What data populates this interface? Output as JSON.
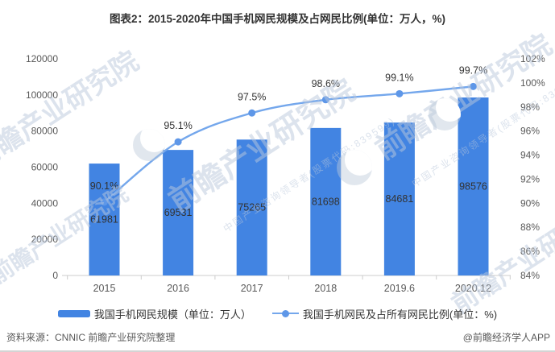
{
  "title": "图表2：2015-2020年中国手机网民规模及占网民比例(单位：万人，%)",
  "chart_data": {
    "type": "bar",
    "subtype": "bar+line dual axis",
    "categories": [
      "2015",
      "2016",
      "2017",
      "2018",
      "2019.6",
      "2020.12"
    ],
    "series": [
      {
        "name": "我国手机网民规模（单位：万人）",
        "type": "bar",
        "axis": "left",
        "values": [
          61981,
          69531,
          75265,
          81698,
          84681,
          98576
        ]
      },
      {
        "name": "我国手机网民及占所有网民比例(单位：%)",
        "type": "line",
        "axis": "right",
        "values": [
          90.1,
          95.1,
          97.5,
          98.6,
          99.1,
          99.7
        ],
        "labels": [
          "90.1%",
          "95.1%",
          "97.5%",
          "98.6%",
          "99.1%",
          "99.7%"
        ]
      }
    ],
    "left_axis": {
      "min": 0,
      "max": 120000,
      "step": 20000
    },
    "right_axis": {
      "min": 84,
      "max": 102,
      "step": 2,
      "suffix": "%"
    },
    "grid": false,
    "legend_position": "bottom"
  },
  "colors": {
    "bar": "#4284E2",
    "line": "#74A7EC",
    "dot": "#5E97E8",
    "label_text": "#333333",
    "axis_text": "#595959",
    "axis_line": "#cccccc",
    "footer_text": "#595959"
  },
  "footer": {
    "source": "资料来源：CNNIC 前瞻产业研究院整理",
    "credit": "@前瞻经济学人APP"
  },
  "watermark": {
    "brand": "前瞻产业研究院",
    "tagline": "中国产业咨询领导者(股票代码:839599)"
  }
}
